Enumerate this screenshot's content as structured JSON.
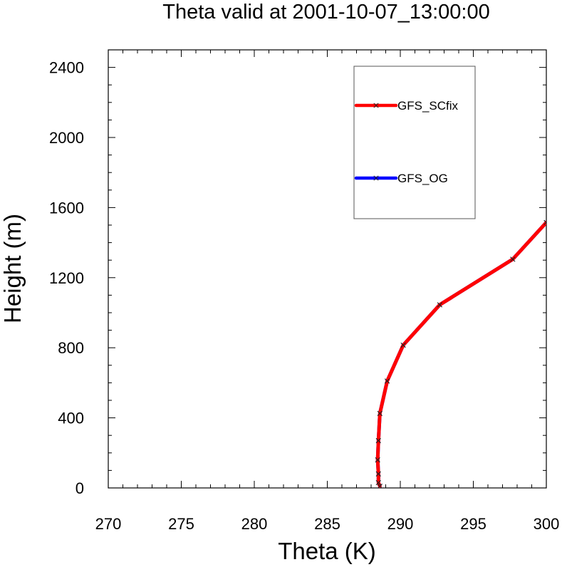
{
  "chart_data": {
    "type": "line",
    "title": "Theta valid at 2001-10-07_13:00:00",
    "xlabel": "Theta (K)",
    "ylabel": "Height (m)",
    "xlim": [
      270,
      300
    ],
    "ylim": [
      0,
      2500
    ],
    "x_ticks": [
      "270",
      "275",
      "280",
      "285",
      "290",
      "295",
      "300"
    ],
    "y_ticks": [
      "0",
      "400",
      "800",
      "1200",
      "1600",
      "2000",
      "2400"
    ],
    "legend_placement": "top-right",
    "series": [
      {
        "name": "GFS_OG",
        "color": "#0000ff",
        "points": [
          [
            288.6,
            10
          ],
          [
            288.5,
            30
          ],
          [
            288.5,
            80
          ],
          [
            288.45,
            160
          ],
          [
            288.5,
            270
          ],
          [
            288.6,
            425
          ],
          [
            289.1,
            610
          ],
          [
            290.2,
            815
          ],
          [
            292.7,
            1045
          ],
          [
            297.7,
            1305
          ],
          [
            300.0,
            1515
          ]
        ]
      },
      {
        "name": "GFS_SCfix",
        "color": "#ff0000",
        "points": [
          [
            288.6,
            10
          ],
          [
            288.5,
            30
          ],
          [
            288.5,
            80
          ],
          [
            288.45,
            160
          ],
          [
            288.5,
            270
          ],
          [
            288.6,
            425
          ],
          [
            289.1,
            610
          ],
          [
            290.2,
            815
          ],
          [
            292.7,
            1045
          ],
          [
            297.7,
            1305
          ],
          [
            300.0,
            1515
          ]
        ]
      }
    ]
  }
}
